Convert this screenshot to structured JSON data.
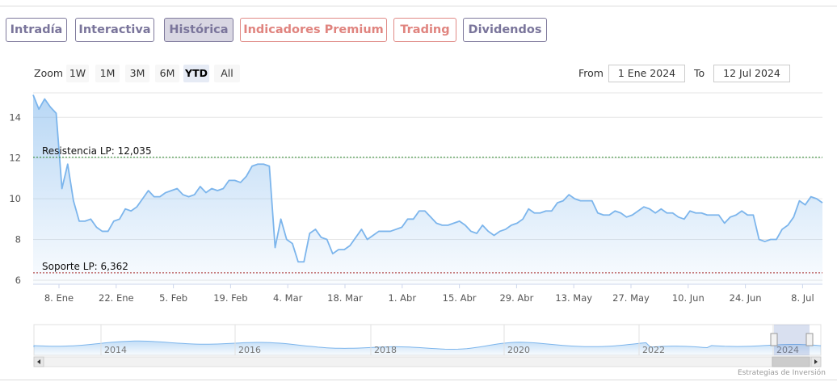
{
  "tabs": [
    {
      "label": "Intradía",
      "style": "purple"
    },
    {
      "label": "Interactiva",
      "style": "purple"
    },
    {
      "label": "Histórica",
      "style": "active"
    },
    {
      "label": "Indicadores Premium",
      "style": "red"
    },
    {
      "label": "Trading",
      "style": "red"
    },
    {
      "label": "Dividendos",
      "style": "purple"
    }
  ],
  "zoom": {
    "label": "Zoom",
    "buttons": [
      "1W",
      "1M",
      "3M",
      "6M",
      "YTD",
      "All"
    ],
    "selected": "YTD"
  },
  "range": {
    "from_label": "From",
    "from_value": "1 Ene 2024",
    "to_label": "To",
    "to_value": "12 Jul 2024"
  },
  "credits": "Estrategias de Inversión",
  "colors": {
    "line": "#7cb5ec",
    "fill": "#7cb5ec",
    "resistance": "#2e8b2e",
    "support": "#a52a2a",
    "tab_purple": "#7a759b",
    "tab_red": "#e0847f"
  },
  "chart_data": {
    "type": "area",
    "title": "",
    "xlabel": "",
    "ylabel": "",
    "ylim": [
      5.8,
      15.2
    ],
    "yticks": [
      6,
      8,
      10,
      12,
      14
    ],
    "xticks": [
      "8. Ene",
      "22. Ene",
      "5. Feb",
      "19. Feb",
      "4. Mar",
      "18. Mar",
      "1. Abr",
      "15. Abr",
      "29. Abr",
      "13. May",
      "27. May",
      "10. Jun",
      "24. Jun",
      "8. Jul"
    ],
    "grid": true,
    "annotations": [
      {
        "label": "Resistencia LP: 12,035",
        "value": 12.035,
        "style": "dotted",
        "color": "#2e8b2e"
      },
      {
        "label": "Soporte LP: 6,362",
        "value": 6.362,
        "style": "dotted",
        "color": "#a52a2a"
      }
    ],
    "series": [
      {
        "values": [
          15.1,
          14.4,
          14.9,
          14.5,
          14.2,
          10.5,
          11.7,
          9.9,
          8.9,
          8.9,
          9.0,
          8.6,
          8.4,
          8.4,
          8.9,
          9.0,
          9.5,
          9.4,
          9.6,
          10.0,
          10.4,
          10.1,
          10.1,
          10.3,
          10.4,
          10.5,
          10.2,
          10.1,
          10.2,
          10.6,
          10.3,
          10.5,
          10.4,
          10.5,
          10.9,
          10.9,
          10.8,
          11.1,
          11.6,
          11.7,
          11.7,
          11.6,
          7.6,
          9.0,
          8.0,
          7.8,
          6.9,
          6.9,
          8.3,
          8.5,
          8.1,
          8.0,
          7.3,
          7.5,
          7.5,
          7.7,
          8.1,
          8.5,
          8.0,
          8.2,
          8.4,
          8.4,
          8.4,
          8.5,
          8.6,
          9.0,
          9.0,
          9.4,
          9.4,
          9.1,
          8.8,
          8.7,
          8.7,
          8.8,
          8.9,
          8.7,
          8.4,
          8.3,
          8.7,
          8.4,
          8.2,
          8.4,
          8.5,
          8.7,
          8.8,
          9.0,
          9.5,
          9.3,
          9.3,
          9.4,
          9.4,
          9.8,
          9.9,
          10.2,
          10.0,
          9.9,
          9.9,
          9.9,
          9.3,
          9.2,
          9.2,
          9.4,
          9.3,
          9.1,
          9.2,
          9.4,
          9.6,
          9.5,
          9.3,
          9.5,
          9.3,
          9.3,
          9.1,
          9.0,
          9.4,
          9.3,
          9.3,
          9.2,
          9.2,
          9.2,
          8.8,
          9.1,
          9.2,
          9.4,
          9.2,
          9.2,
          8.0,
          7.9,
          8.0,
          8.0,
          8.5,
          8.7,
          9.1,
          9.9,
          9.7,
          10.1,
          10.0,
          9.8
        ]
      }
    ],
    "navigator": {
      "labels": [
        "2014",
        "2016",
        "2018",
        "2020",
        "2022",
        "2024"
      ]
    }
  }
}
